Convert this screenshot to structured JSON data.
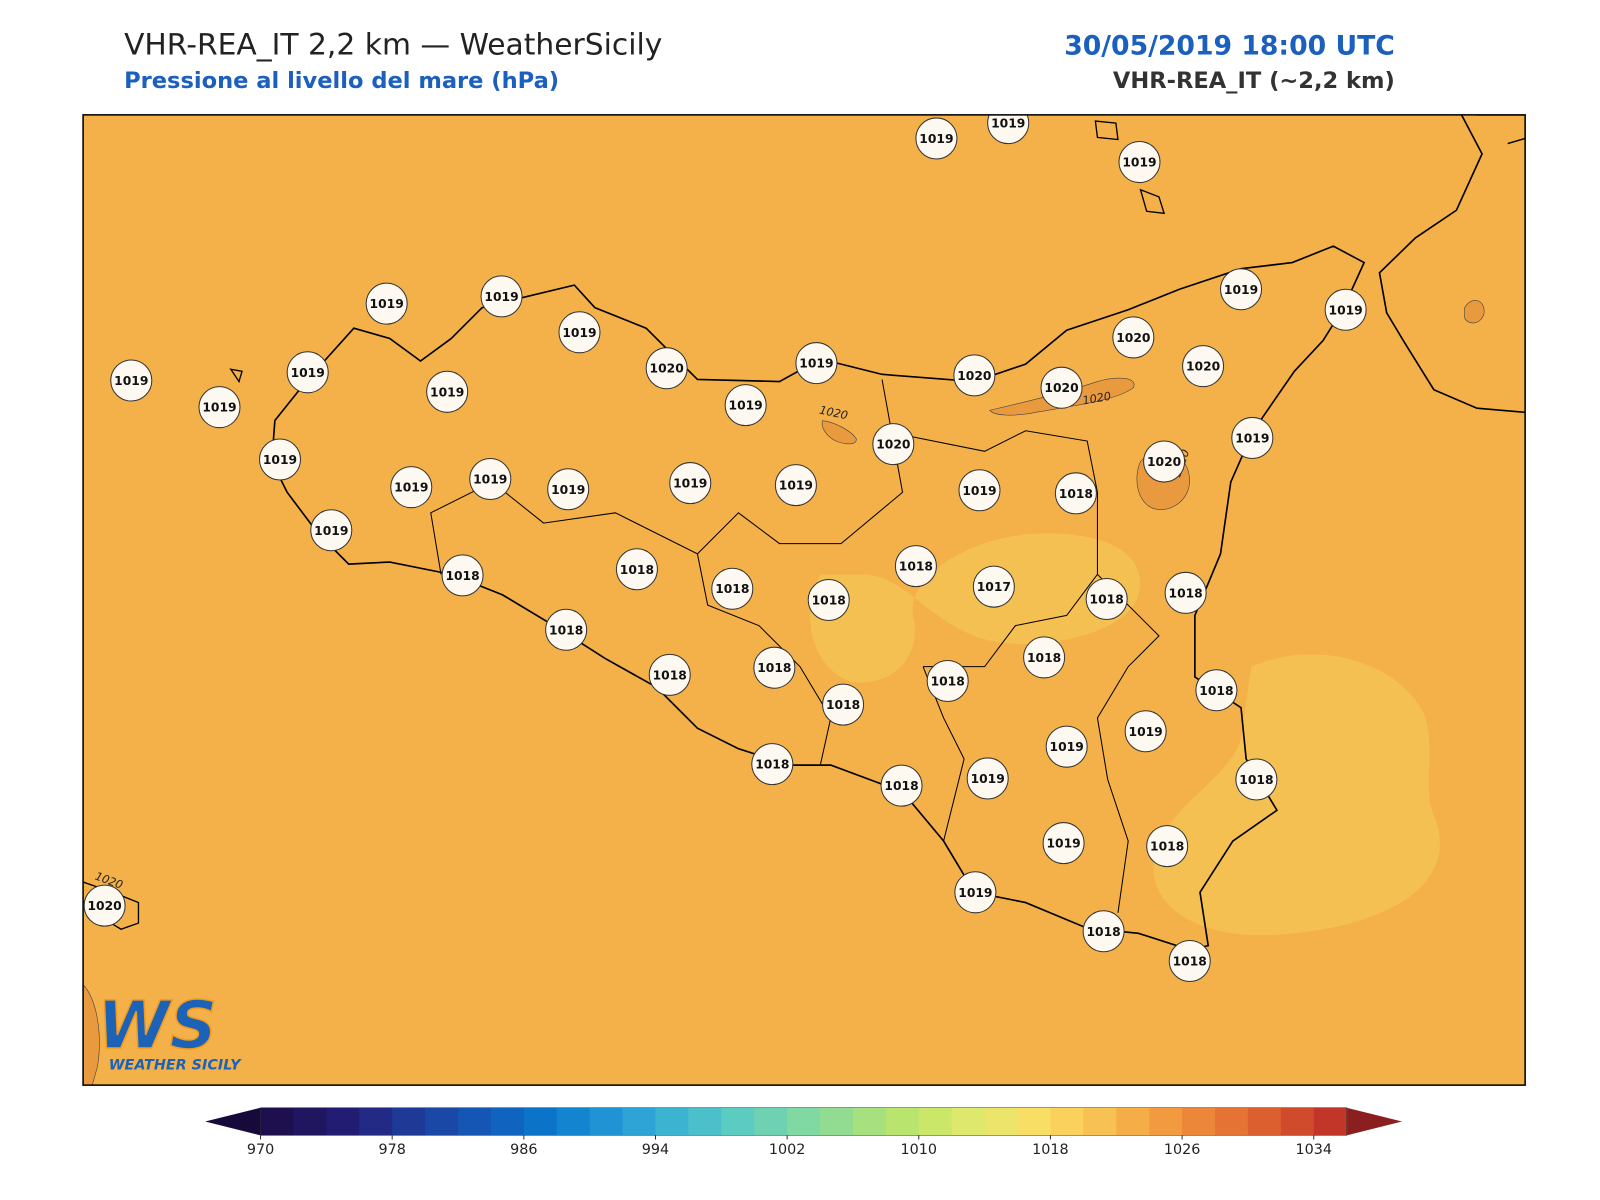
{
  "header": {
    "title": "VHR-REA_IT 2,2 km — WeatherSicily",
    "subtitle": "Pressione al livello del mare (hPa)",
    "datetime": "30/05/2019 18:00 UTC",
    "model": "VHR-REA_IT (~2,2 km)"
  },
  "stations": [
    "1019",
    "1019",
    "1019",
    "1019",
    "1019",
    "1019",
    "1019",
    "1019",
    "1019",
    "1019",
    "1019",
    "1020",
    "1019",
    "1019",
    "1020",
    "1020",
    "1020",
    "1020",
    "1019",
    "1019",
    "1020",
    "1019",
    "1020",
    "1019",
    "1019",
    "1019",
    "1019",
    "1019",
    "1019",
    "1018",
    "1019",
    "1018",
    "1018",
    "1018",
    "1018",
    "1018",
    "1017",
    "1018",
    "1018",
    "1018",
    "1018",
    "1018",
    "1018",
    "1018",
    "1018",
    "1018",
    "1019",
    "1019",
    "1018",
    "1018",
    "1019",
    "1018",
    "1019",
    "1018",
    "1020",
    "1019",
    "1018",
    "1018"
  ],
  "contour_labels": [
    "1020",
    "1020",
    "1020",
    "1020"
  ],
  "logo": {
    "mark": "WS",
    "text": "WEATHER SICILY"
  },
  "colorbar": {
    "range": [
      970,
      1036
    ],
    "ticks": [
      970,
      978,
      986,
      994,
      1002,
      1010,
      1018,
      1026,
      1034
    ],
    "colors": [
      "#1e0f4f",
      "#201660",
      "#221c72",
      "#232a85",
      "#1e3a96",
      "#1a48a6",
      "#1556b4",
      "#1064bf",
      "#0c74c8",
      "#1384cf",
      "#1f93d4",
      "#2ea4d6",
      "#3db3d2",
      "#4bc0cb",
      "#5ccbc0",
      "#6ed2b2",
      "#80d8a2",
      "#92dc91",
      "#a6e07f",
      "#b9e46e",
      "#cbe76a",
      "#dde86c",
      "#ece56b",
      "#f9de66",
      "#fad15c",
      "#f8c153",
      "#f5ad48",
      "#f19a40",
      "#ec873a",
      "#e57334",
      "#dc5f2f",
      "#cf4b2c",
      "#c13629"
    ],
    "under": "#150a3a",
    "over": "#8b1e1e"
  }
}
